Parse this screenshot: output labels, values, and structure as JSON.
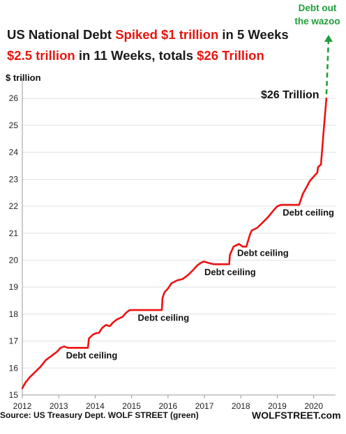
{
  "chart_data": {
    "type": "line",
    "title_line1": [
      {
        "text": "US National Debt ",
        "color": "black"
      },
      {
        "text": "Spiked ",
        "color": "red"
      },
      {
        "text": "$1 trillion ",
        "color": "red"
      },
      {
        "text": "in 5 Weeks",
        "color": "black"
      }
    ],
    "title_line2": [
      {
        "text": "$2.5 trillion ",
        "color": "red"
      },
      {
        "text": "in 11 Weeks, totals ",
        "color": "black"
      },
      {
        "text": "$26 Trillion",
        "color": "red"
      }
    ],
    "ylabel": "$ trillion",
    "xlim": [
      2012,
      2020.6
    ],
    "ylim": [
      15,
      26.6
    ],
    "x_ticks": [
      "2012",
      "2013",
      "2014",
      "2015",
      "2016",
      "2017",
      "2018",
      "2019",
      "2020"
    ],
    "y_ticks": [
      "15",
      "16",
      "17",
      "18",
      "19",
      "20",
      "21",
      "22",
      "23",
      "24",
      "25",
      "26"
    ],
    "series": [
      {
        "color": "#ee1111",
        "x": [
          2012.0,
          2012.08,
          2012.2,
          2012.35,
          2012.5,
          2012.65,
          2012.8,
          2012.95,
          2013.05,
          2013.15,
          2013.25,
          2013.4,
          2013.65,
          2013.8,
          2013.83,
          2013.95,
          2014.05,
          2014.1,
          2014.2,
          2014.3,
          2014.4,
          2014.5,
          2014.6,
          2014.75,
          2014.85,
          2014.95,
          2015.05,
          2015.15,
          2015.5,
          2015.83,
          2015.85,
          2015.9,
          2016.0,
          2016.1,
          2016.25,
          2016.4,
          2016.55,
          2016.7,
          2016.8,
          2016.9,
          2016.98,
          2017.1,
          2017.25,
          2017.6,
          2017.68,
          2017.7,
          2017.8,
          2017.95,
          2018.05,
          2018.15,
          2018.25,
          2018.3,
          2018.45,
          2018.6,
          2018.75,
          2018.9,
          2019.0,
          2019.1,
          2019.55,
          2019.6,
          2019.7,
          2019.8,
          2019.9,
          2020.0,
          2020.1,
          2020.12,
          2020.2,
          2020.28,
          2020.35
        ],
        "values": [
          15.25,
          15.45,
          15.65,
          15.85,
          16.05,
          16.3,
          16.45,
          16.6,
          16.75,
          16.8,
          16.75,
          16.75,
          16.75,
          16.75,
          17.1,
          17.25,
          17.3,
          17.3,
          17.5,
          17.6,
          17.55,
          17.7,
          17.8,
          17.9,
          18.05,
          18.15,
          18.15,
          18.15,
          18.15,
          18.15,
          18.6,
          18.8,
          18.95,
          19.15,
          19.25,
          19.3,
          19.45,
          19.65,
          19.8,
          19.9,
          19.95,
          19.9,
          19.85,
          19.85,
          19.85,
          20.2,
          20.5,
          20.6,
          20.5,
          20.5,
          20.95,
          21.1,
          21.2,
          21.4,
          21.6,
          21.85,
          22.0,
          22.05,
          22.05,
          22.05,
          22.45,
          22.7,
          22.95,
          23.1,
          23.25,
          23.45,
          23.55,
          24.9,
          26.0
        ]
      }
    ],
    "projection_color": "#1f9e3a",
    "annotations": [
      {
        "text": "Debt ceiling",
        "x": 2013.2,
        "y": 16.35
      },
      {
        "text": "Debt ceiling",
        "x": 2015.17,
        "y": 17.75
      },
      {
        "text": "Debt ceiling",
        "x": 2017.0,
        "y": 19.45
      },
      {
        "text": "Debt ceiling",
        "x": 2017.9,
        "y": 20.15
      },
      {
        "text": "Debt ceiling",
        "x": 2019.15,
        "y": 21.65
      },
      {
        "text": "$26 Trillion",
        "x": 2018.55,
        "y": 26.0,
        "big": true
      }
    ],
    "green_label": [
      "Debt out",
      "the wazoo"
    ]
  },
  "footer": {
    "source": "Source: US Treasury Dept. WOLF STREET (green)",
    "brand": "WOLFSTREET.com"
  }
}
